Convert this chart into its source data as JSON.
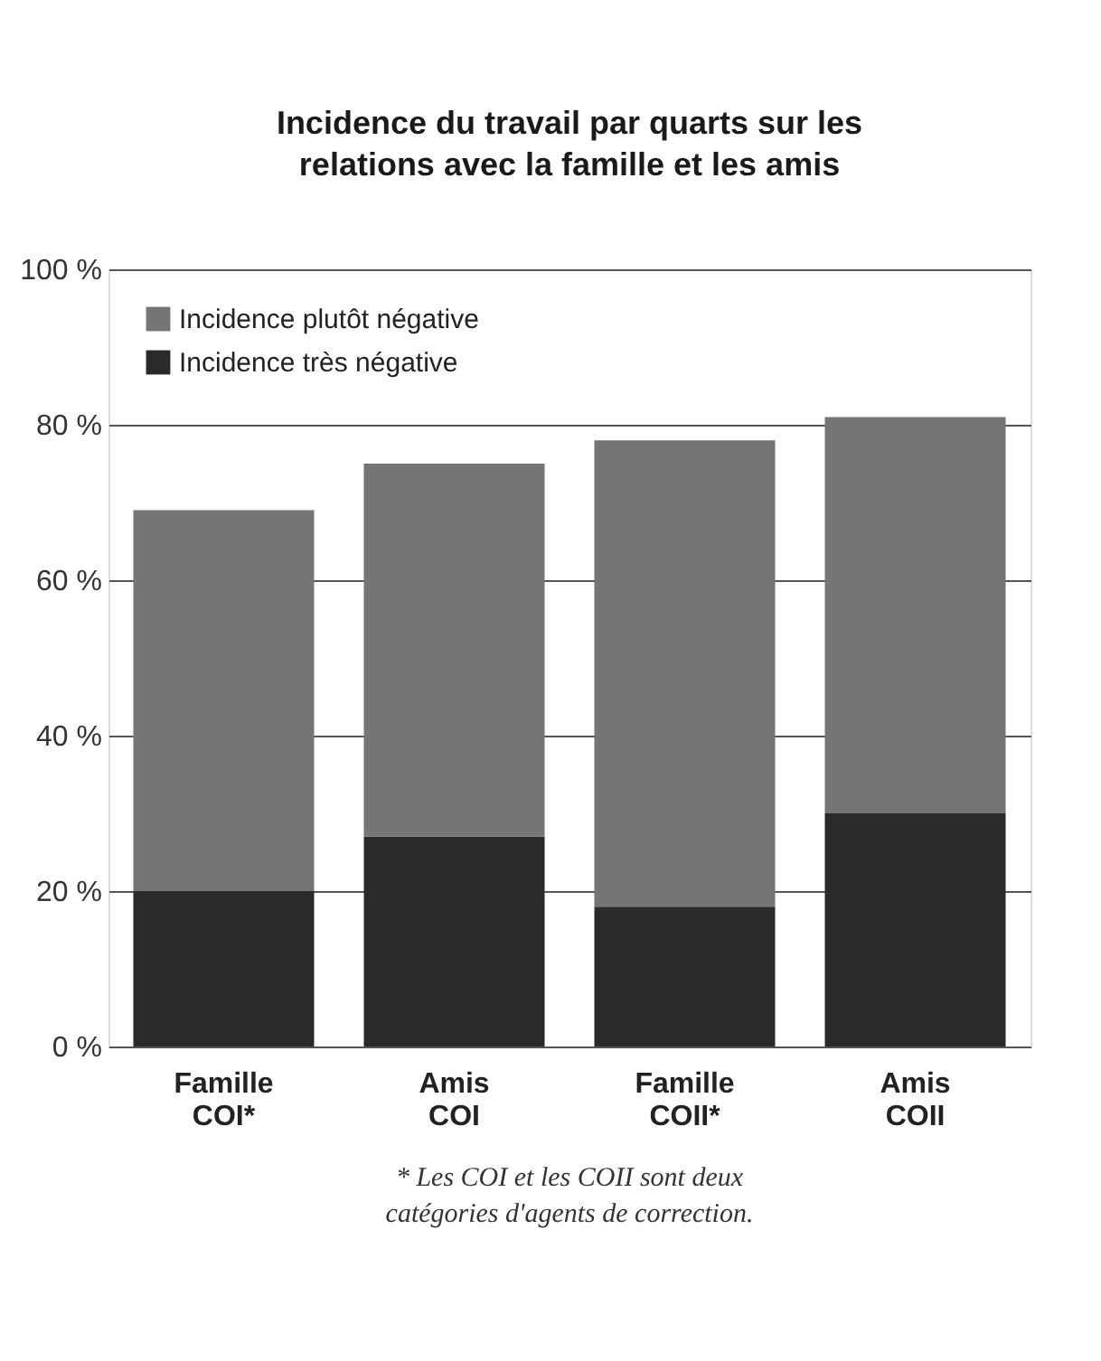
{
  "chart_data": {
    "type": "bar",
    "stacked": true,
    "title": "Incidence du travail par quarts sur les relations avec la famille et les amis",
    "categories": [
      "Famille\nCOI*",
      "Amis\nCOI",
      "Famille\nCOII*",
      "Amis\nCOII"
    ],
    "series": [
      {
        "name": "Incidence très négative",
        "color": "#2a2a2a",
        "values": [
          20,
          27,
          18,
          30
        ]
      },
      {
        "name": "Incidence plutôt négative",
        "color": "#737577",
        "values": [
          49,
          48,
          60,
          51
        ]
      }
    ],
    "ylim": [
      0,
      100
    ],
    "yticks": [
      {
        "value": 0,
        "label": "0 %"
      },
      {
        "value": 20,
        "label": "20 %"
      },
      {
        "value": 40,
        "label": "40 %"
      },
      {
        "value": 60,
        "label": "60 %"
      },
      {
        "value": 80,
        "label": "80 %"
      },
      {
        "value": 100,
        "label": "100 %"
      }
    ],
    "grid": "y",
    "legend": "top left",
    "annotations": [
      "* Les COI et les COII sont deux catégories d'agents de correction."
    ]
  }
}
